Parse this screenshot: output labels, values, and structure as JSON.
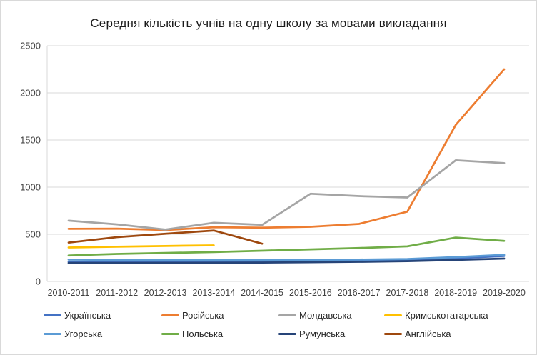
{
  "chart_data": {
    "type": "line",
    "title": "Середня кількість учнів на одну школу за мовами викладання",
    "categories": [
      "2010-2011",
      "2011-2012",
      "2012-2013",
      "2013-2014",
      "2014-2015",
      "2015-2016",
      "2016-2017",
      "2017-2018",
      "2018-2019",
      "2019-2020"
    ],
    "series": [
      {
        "name": "Українська",
        "color": "#4472C4",
        "values": [
          210,
          208,
          206,
          207,
          210,
          214,
          218,
          226,
          245,
          270
        ]
      },
      {
        "name": "Російська",
        "color": "#ED7D31",
        "values": [
          558,
          560,
          545,
          575,
          570,
          580,
          610,
          740,
          1660,
          2250
        ]
      },
      {
        "name": "Молдавська",
        "color": "#A5A5A5",
        "values": [
          645,
          605,
          550,
          622,
          600,
          930,
          905,
          890,
          1285,
          1255
        ]
      },
      {
        "name": "Кримськотатарська",
        "color": "#FFC000",
        "values": [
          360,
          368,
          376,
          383,
          null,
          null,
          null,
          null,
          null,
          null
        ]
      },
      {
        "name": "Угорська",
        "color": "#5B9BD5",
        "values": [
          232,
          228,
          226,
          225,
          226,
          229,
          232,
          238,
          258,
          282
        ]
      },
      {
        "name": "Польська",
        "color": "#70AD47",
        "values": [
          275,
          292,
          302,
          312,
          326,
          340,
          354,
          372,
          465,
          430
        ]
      },
      {
        "name": "Румунська",
        "color": "#264478",
        "values": [
          196,
          196,
          197,
          198,
          200,
          204,
          208,
          215,
          228,
          242
        ]
      },
      {
        "name": "Англійська",
        "color": "#9E480E",
        "values": [
          412,
          470,
          506,
          540,
          400,
          null,
          null,
          null,
          null,
          null
        ]
      }
    ],
    "yticks": [
      0,
      500,
      1000,
      1500,
      2000,
      2500
    ],
    "ylim": [
      0,
      2500
    ],
    "xlabel": "",
    "ylabel": "",
    "grid": "horizontal",
    "legend_position": "bottom",
    "legend_rows": 2,
    "legend_columns": 4,
    "gridline_color": "#D9D9D9",
    "axis_text_color": "#404040"
  }
}
